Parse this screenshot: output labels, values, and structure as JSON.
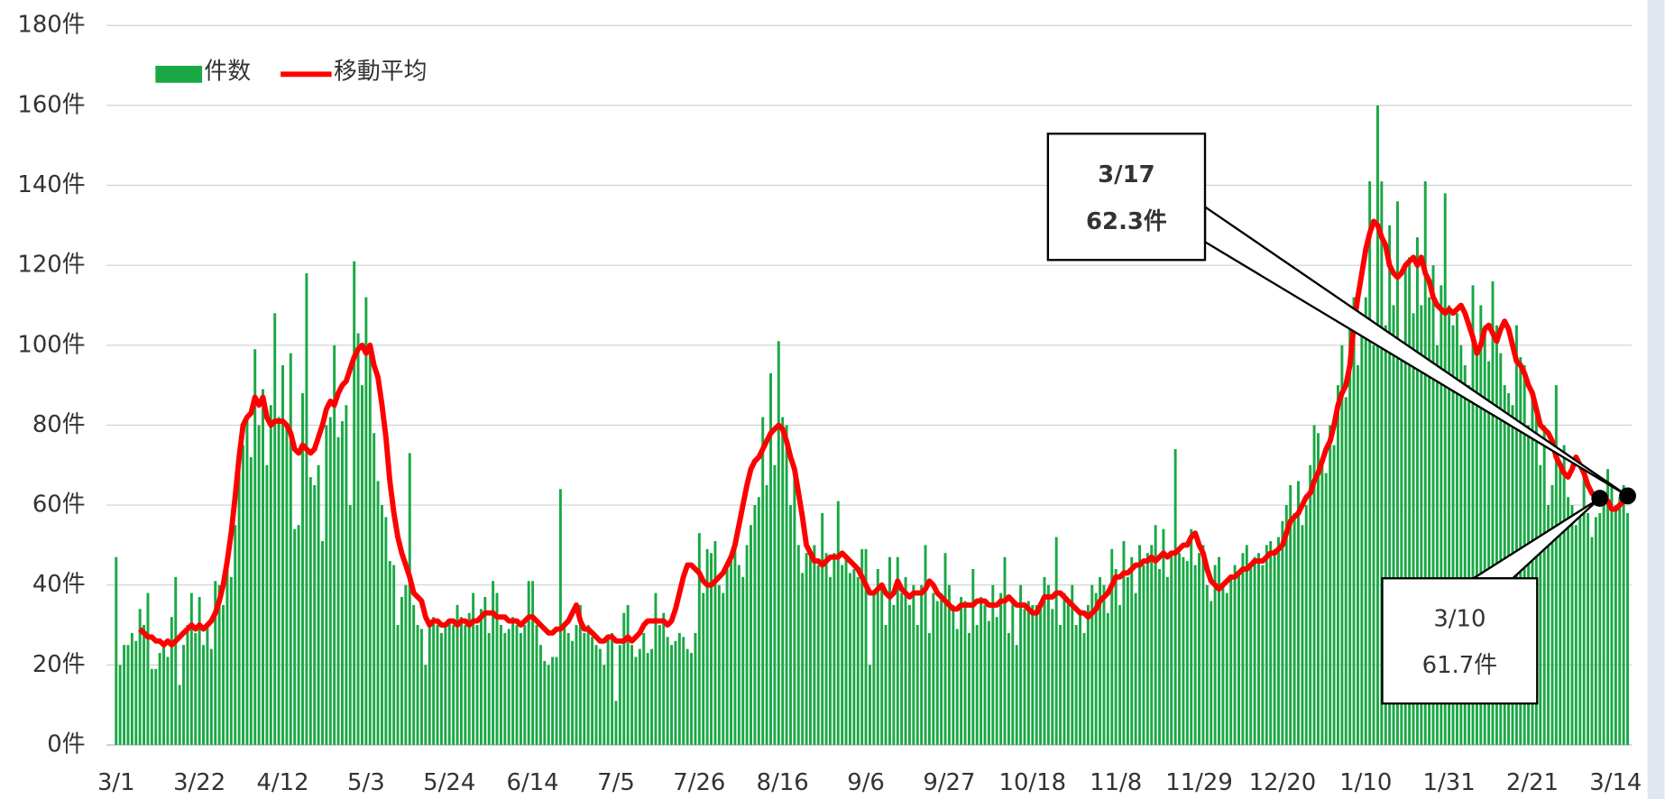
{
  "chart_data": {
    "type": "bar_line",
    "legend": "top-left",
    "grid": true,
    "ylim": [
      0,
      180
    ],
    "yticks": [
      {
        "value": 0,
        "label": "0件"
      },
      {
        "value": 20,
        "label": "20件"
      },
      {
        "value": 40,
        "label": "40件"
      },
      {
        "value": 60,
        "label": "60件"
      },
      {
        "value": 80,
        "label": "80件"
      },
      {
        "value": 100,
        "label": "100件"
      },
      {
        "value": 120,
        "label": "120件"
      },
      {
        "value": 140,
        "label": "140件"
      },
      {
        "value": 160,
        "label": "160件"
      },
      {
        "value": 180,
        "label": "180件"
      }
    ],
    "categories": [
      "3/1",
      null,
      null,
      null,
      null,
      null,
      null,
      null,
      null,
      null,
      null,
      null,
      null,
      null,
      null,
      null,
      null,
      null,
      null,
      null,
      null,
      "3/22",
      null,
      null,
      null,
      null,
      null,
      null,
      null,
      null,
      null,
      null,
      null,
      null,
      null,
      null,
      null,
      null,
      null,
      null,
      null,
      null,
      "4/12",
      null,
      null,
      null,
      null,
      null,
      null,
      null,
      null,
      null,
      null,
      null,
      null,
      null,
      null,
      null,
      null,
      null,
      null,
      null,
      null,
      "5/3",
      null,
      null,
      null,
      null,
      null,
      null,
      null,
      null,
      null,
      null,
      null,
      null,
      null,
      null,
      null,
      null,
      null,
      null,
      null,
      null,
      "5/24",
      null,
      null,
      null,
      null,
      null,
      null,
      null,
      null,
      null,
      null,
      null,
      null,
      null,
      null,
      null,
      null,
      null,
      null,
      null,
      null,
      "6/14",
      null,
      null,
      null,
      null,
      null,
      null,
      null,
      null,
      null,
      null,
      null,
      null,
      null,
      null,
      null,
      null,
      null,
      null,
      null,
      null,
      "7/5",
      null,
      null,
      null,
      null,
      null,
      null,
      null,
      null,
      null,
      null,
      null,
      null,
      null,
      null,
      null,
      null,
      null,
      null,
      null,
      null,
      "7/26",
      null,
      null,
      null,
      null,
      null,
      null,
      null,
      null,
      null,
      null,
      null,
      null,
      null,
      null,
      null,
      null,
      null,
      null,
      null,
      null,
      "8/16",
      null,
      null,
      null,
      null,
      null,
      null,
      null,
      null,
      null,
      null,
      null,
      null,
      null,
      null,
      null,
      null,
      null,
      null,
      null,
      null,
      "9/6",
      null,
      null,
      null,
      null,
      null,
      null,
      null,
      null,
      null,
      null,
      null,
      null,
      null,
      null,
      null,
      null,
      null,
      null,
      null,
      null,
      "9/27",
      null,
      null,
      null,
      null,
      null,
      null,
      null,
      null,
      null,
      null,
      null,
      null,
      null,
      null,
      null,
      null,
      null,
      null,
      null,
      null,
      "10/18",
      null,
      null,
      null,
      null,
      null,
      null,
      null,
      null,
      null,
      null,
      null,
      null,
      null,
      null,
      null,
      null,
      null,
      null,
      null,
      null,
      "11/8",
      null,
      null,
      null,
      null,
      null,
      null,
      null,
      null,
      null,
      null,
      null,
      null,
      null,
      null,
      null,
      null,
      null,
      null,
      null,
      null,
      "11/29",
      null,
      null,
      null,
      null,
      null,
      null,
      null,
      null,
      null,
      null,
      null,
      null,
      null,
      null,
      null,
      null,
      null,
      null,
      null,
      null,
      "12/20",
      null,
      null,
      null,
      null,
      null,
      null,
      null,
      null,
      null,
      null,
      null,
      null,
      null,
      null,
      null,
      null,
      null,
      null,
      null,
      null,
      "1/10",
      null,
      null,
      null,
      null,
      null,
      null,
      null,
      null,
      null,
      null,
      null,
      null,
      null,
      null,
      null,
      null,
      null,
      null,
      null,
      null,
      "1/31",
      null,
      null,
      null,
      null,
      null,
      null,
      null,
      null,
      null,
      null,
      null,
      null,
      null,
      null,
      null,
      null,
      null,
      null,
      null,
      null,
      "2/21",
      null,
      null,
      null,
      null,
      null,
      null,
      null,
      null,
      null,
      null,
      null,
      null,
      null,
      null,
      null,
      null,
      null,
      null,
      null,
      null,
      "3/14",
      null,
      null,
      null
    ],
    "series": [
      {
        "name": "件数",
        "color": "#1aa845",
        "type": "bar",
        "values": [
          47,
          20,
          25,
          25,
          28,
          26,
          34,
          30,
          38,
          19,
          19,
          23,
          26,
          22,
          32,
          42,
          15,
          25,
          30,
          38,
          28,
          37,
          25,
          30,
          24,
          41,
          40,
          35,
          48,
          42,
          55,
          69,
          75,
          82,
          72,
          99,
          80,
          89,
          70,
          85,
          108,
          82,
          95,
          80,
          98,
          54,
          55,
          88,
          118,
          67,
          65,
          70,
          51,
          80,
          82,
          100,
          77,
          81,
          85,
          60,
          121,
          103,
          90,
          112,
          98,
          78,
          66,
          60,
          57,
          46,
          45,
          30,
          37,
          40,
          73,
          35,
          30,
          29,
          20,
          30,
          32,
          30,
          28,
          30,
          31,
          30,
          35,
          32,
          30,
          33,
          38,
          30,
          34,
          37,
          28,
          41,
          38,
          30,
          28,
          29,
          32,
          30,
          28,
          30,
          41,
          41,
          30,
          25,
          21,
          20,
          22,
          22,
          64,
          30,
          28,
          26,
          30,
          35,
          28,
          30,
          27,
          25,
          24,
          20,
          27,
          28,
          11,
          25,
          33,
          35,
          25,
          22,
          24,
          28,
          23,
          24,
          38,
          30,
          33,
          27,
          25,
          26,
          28,
          27,
          24,
          23,
          28,
          53,
          38,
          49,
          48,
          51,
          40,
          38,
          45,
          47,
          50,
          45,
          42,
          50,
          55,
          60,
          62,
          82,
          65,
          93,
          70,
          101,
          82,
          80,
          60,
          68,
          50,
          43,
          48,
          48,
          50,
          45,
          58,
          48,
          42,
          48,
          61,
          45,
          47,
          43,
          44,
          42,
          49,
          49,
          20,
          38,
          44,
          40,
          30,
          47,
          35,
          47,
          38,
          42,
          35,
          40,
          30,
          40,
          50,
          28,
          38,
          36,
          38,
          48,
          40,
          35,
          29,
          37,
          36,
          28,
          44,
          30,
          37,
          35,
          31,
          40,
          32,
          38,
          47,
          28,
          36,
          25,
          40,
          34,
          36,
          35,
          35,
          35,
          42,
          40,
          34,
          52,
          30,
          38,
          36,
          40,
          30,
          33,
          28,
          35,
          40,
          38,
          42,
          40,
          33,
          49,
          44,
          35,
          51,
          42,
          47,
          38,
          50,
          45,
          48,
          50,
          55,
          44,
          54,
          42,
          48,
          74,
          48,
          47,
          46,
          54,
          45,
          48,
          50,
          40,
          36,
          45,
          47,
          40,
          38,
          42,
          45,
          43,
          48,
          50,
          45,
          47,
          48,
          45,
          50,
          51,
          49,
          52,
          56,
          60,
          65,
          58,
          66,
          55,
          60,
          70,
          80,
          78,
          72,
          68,
          80,
          75,
          90,
          100,
          87,
          105,
          112,
          95,
          105,
          112,
          141,
          100,
          160,
          141,
          105,
          130,
          110,
          136,
          100,
          120,
          122,
          108,
          127,
          110,
          141,
          112,
          120,
          100,
          115,
          138,
          110,
          105,
          108,
          100,
          95,
          90,
          115,
          100,
          110,
          105,
          96,
          116,
          105,
          98,
          90,
          88,
          85,
          105,
          97,
          95,
          80,
          88,
          85,
          70,
          80,
          60,
          65,
          90,
          70,
          75,
          62,
          60,
          55,
          58,
          68,
          58,
          52,
          57,
          58,
          60,
          69,
          65,
          60,
          62,
          65,
          58
        ]
      },
      {
        "name": "移動平均",
        "color": "#ff0000",
        "type": "line",
        "values": [
          null,
          null,
          null,
          null,
          null,
          null,
          29,
          28,
          27,
          27,
          26,
          26,
          25,
          26,
          25,
          26,
          27,
          28,
          29,
          30,
          29,
          30,
          29,
          30,
          31,
          33,
          36,
          40,
          46,
          53,
          62,
          72,
          80,
          82,
          83,
          87,
          85,
          87,
          82,
          80,
          81,
          81,
          81,
          80,
          78,
          74,
          73,
          75,
          74,
          73,
          74,
          77,
          80,
          84,
          86,
          85,
          88,
          90,
          91,
          94,
          97,
          99,
          100,
          98,
          100,
          95,
          92,
          85,
          77,
          66,
          58,
          52,
          48,
          45,
          42,
          38,
          37,
          36,
          32,
          30,
          31,
          31,
          30,
          30,
          31,
          31,
          30,
          31,
          31,
          30,
          31,
          31,
          32,
          33,
          33,
          33,
          32,
          32,
          32,
          31,
          31,
          31,
          30,
          31,
          32,
          32,
          31,
          30,
          29,
          28,
          28,
          29,
          29,
          30,
          31,
          33,
          35,
          31,
          29,
          29,
          28,
          27,
          26,
          26,
          27,
          27,
          26,
          26,
          26,
          27,
          26,
          27,
          28,
          30,
          31,
          31,
          31,
          31,
          31,
          30,
          31,
          34,
          38,
          42,
          45,
          45,
          44,
          43,
          41,
          40,
          40,
          41,
          42,
          43,
          45,
          47,
          50,
          55,
          60,
          65,
          69,
          71,
          72,
          74,
          76,
          78,
          79,
          80,
          79,
          76,
          72,
          69,
          63,
          57,
          50,
          48,
          46,
          46,
          45,
          46,
          47,
          47,
          47,
          48,
          47,
          46,
          45,
          44,
          42,
          40,
          38,
          38,
          39,
          40,
          38,
          37,
          38,
          41,
          39,
          38,
          37,
          38,
          38,
          38,
          39,
          41,
          40,
          38,
          37,
          36,
          35,
          34,
          34,
          35,
          35,
          35,
          35,
          36,
          36,
          36,
          35,
          35,
          35,
          36,
          36,
          37,
          36,
          35,
          35,
          35,
          34,
          33,
          33,
          35,
          37,
          37,
          37,
          38,
          38,
          37,
          36,
          35,
          34,
          33,
          33,
          32,
          33,
          34,
          36,
          37,
          38,
          40,
          42,
          42,
          43,
          43,
          44,
          45,
          45,
          46,
          46,
          47,
          46,
          47,
          48,
          47,
          48,
          48,
          49,
          50,
          50,
          52,
          53,
          50,
          48,
          44,
          41,
          40,
          39,
          40,
          41,
          42,
          42,
          43,
          44,
          44,
          45,
          46,
          46,
          46,
          47,
          48,
          48,
          49,
          50,
          53,
          56,
          57,
          58,
          60,
          62,
          63,
          66,
          68,
          71,
          74,
          76,
          80,
          85,
          88,
          90,
          95,
          105,
          112,
          118,
          124,
          128,
          131,
          130,
          127,
          125,
          120,
          118,
          117,
          118,
          120,
          121,
          122,
          120,
          122,
          118,
          116,
          112,
          110,
          109,
          108,
          109,
          108,
          109,
          110,
          108,
          105,
          102,
          98,
          100,
          104,
          105,
          103,
          101,
          104,
          106,
          104,
          100,
          96,
          95,
          93,
          90,
          88,
          84,
          80,
          79,
          78,
          76,
          72,
          70,
          68,
          67,
          69,
          72,
          70,
          68,
          65,
          63,
          62,
          61.7,
          62,
          61,
          59,
          59,
          60,
          61,
          62.3
        ]
      }
    ],
    "annotations": [
      {
        "date": "3/17",
        "value_label": "62.3件"
      },
      {
        "date": "3/10",
        "value_label": "61.7件"
      }
    ]
  }
}
